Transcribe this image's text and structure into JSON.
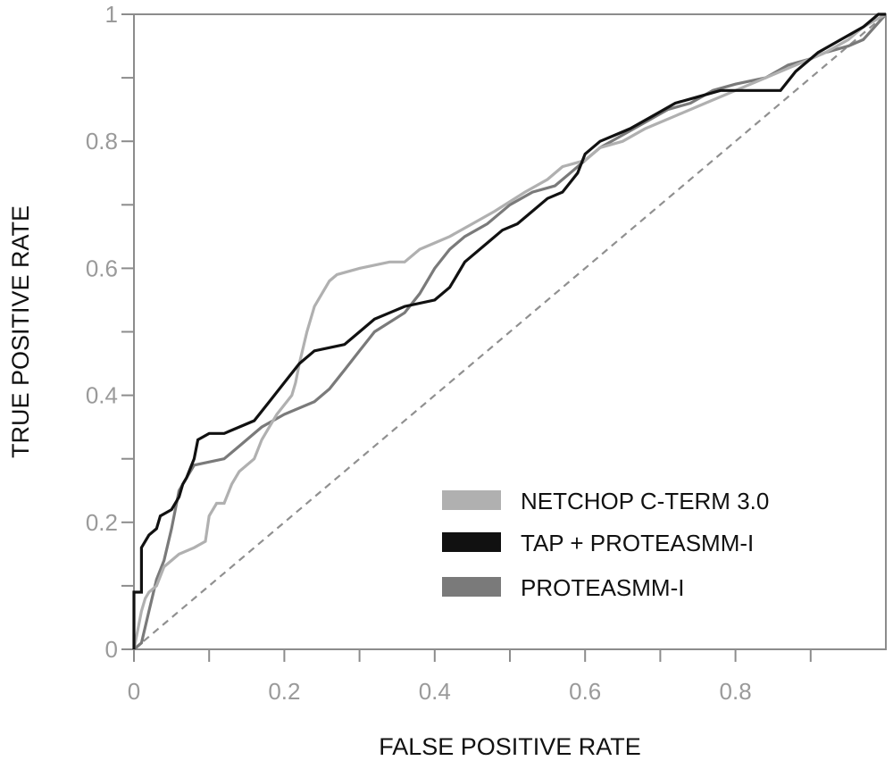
{
  "chart_data": {
    "type": "line",
    "title": "",
    "xlabel": "FALSE POSITIVE RATE",
    "ylabel": "TRUE POSITIVE RATE",
    "xlim": [
      0,
      1
    ],
    "ylim": [
      0,
      1
    ],
    "x_ticks": [
      {
        "value": 0,
        "label": "0"
      },
      {
        "value": 0.2,
        "label": "0.2"
      },
      {
        "value": 0.4,
        "label": "0.4"
      },
      {
        "value": 0.6,
        "label": "0.6"
      },
      {
        "value": 0.8,
        "label": "0.8"
      }
    ],
    "x_minor_ticks": [
      0.1,
      0.3,
      0.5,
      0.7,
      0.9
    ],
    "y_ticks": [
      {
        "value": 0,
        "label": "0"
      },
      {
        "value": 0.2,
        "label": "0.2"
      },
      {
        "value": 0.4,
        "label": "0.4"
      },
      {
        "value": 0.6,
        "label": "0.6"
      },
      {
        "value": 0.8,
        "label": "0.8"
      },
      {
        "value": 1,
        "label": "1"
      }
    ],
    "y_minor_ticks": [
      0.1,
      0.3,
      0.5,
      0.7,
      0.9
    ],
    "grid": false,
    "legend_position": "lower-right",
    "reference_line": {
      "points": [
        [
          0,
          0
        ],
        [
          1,
          1
        ]
      ],
      "style": "dashed",
      "color": "#909090"
    },
    "series": [
      {
        "name": "NETCHOP C-TERM 3.0",
        "color": "#b0b0b0",
        "points": [
          [
            0,
            0
          ],
          [
            0.005,
            0.03
          ],
          [
            0.01,
            0.06
          ],
          [
            0.015,
            0.08
          ],
          [
            0.02,
            0.09
          ],
          [
            0.03,
            0.1
          ],
          [
            0.04,
            0.13
          ],
          [
            0.05,
            0.14
          ],
          [
            0.06,
            0.15
          ],
          [
            0.08,
            0.16
          ],
          [
            0.095,
            0.17
          ],
          [
            0.1,
            0.21
          ],
          [
            0.11,
            0.23
          ],
          [
            0.12,
            0.23
          ],
          [
            0.13,
            0.26
          ],
          [
            0.14,
            0.28
          ],
          [
            0.16,
            0.3
          ],
          [
            0.17,
            0.33
          ],
          [
            0.18,
            0.35
          ],
          [
            0.19,
            0.37
          ],
          [
            0.21,
            0.4
          ],
          [
            0.215,
            0.42
          ],
          [
            0.22,
            0.45
          ],
          [
            0.23,
            0.5
          ],
          [
            0.24,
            0.54
          ],
          [
            0.25,
            0.56
          ],
          [
            0.26,
            0.58
          ],
          [
            0.27,
            0.59
          ],
          [
            0.3,
            0.6
          ],
          [
            0.34,
            0.61
          ],
          [
            0.36,
            0.61
          ],
          [
            0.38,
            0.63
          ],
          [
            0.4,
            0.64
          ],
          [
            0.42,
            0.65
          ],
          [
            0.45,
            0.67
          ],
          [
            0.48,
            0.69
          ],
          [
            0.52,
            0.72
          ],
          [
            0.55,
            0.74
          ],
          [
            0.57,
            0.76
          ],
          [
            0.6,
            0.77
          ],
          [
            0.62,
            0.79
          ],
          [
            0.65,
            0.8
          ],
          [
            0.68,
            0.82
          ],
          [
            0.72,
            0.84
          ],
          [
            0.76,
            0.86
          ],
          [
            0.8,
            0.88
          ],
          [
            0.84,
            0.9
          ],
          [
            0.88,
            0.92
          ],
          [
            0.92,
            0.94
          ],
          [
            0.95,
            0.96
          ],
          [
            0.97,
            0.98
          ],
          [
            1,
            1
          ]
        ]
      },
      {
        "name": "TAP + PROTEASMM-I",
        "color": "#111111",
        "points": [
          [
            0,
            0
          ],
          [
            0,
            0.09
          ],
          [
            0.01,
            0.09
          ],
          [
            0.01,
            0.16
          ],
          [
            0.02,
            0.18
          ],
          [
            0.03,
            0.19
          ],
          [
            0.035,
            0.21
          ],
          [
            0.05,
            0.22
          ],
          [
            0.06,
            0.24
          ],
          [
            0.065,
            0.26
          ],
          [
            0.07,
            0.27
          ],
          [
            0.08,
            0.3
          ],
          [
            0.085,
            0.33
          ],
          [
            0.1,
            0.34
          ],
          [
            0.12,
            0.34
          ],
          [
            0.14,
            0.35
          ],
          [
            0.16,
            0.36
          ],
          [
            0.18,
            0.39
          ],
          [
            0.2,
            0.42
          ],
          [
            0.22,
            0.45
          ],
          [
            0.24,
            0.47
          ],
          [
            0.28,
            0.48
          ],
          [
            0.3,
            0.5
          ],
          [
            0.32,
            0.52
          ],
          [
            0.34,
            0.53
          ],
          [
            0.36,
            0.54
          ],
          [
            0.4,
            0.55
          ],
          [
            0.42,
            0.57
          ],
          [
            0.43,
            0.59
          ],
          [
            0.44,
            0.61
          ],
          [
            0.45,
            0.62
          ],
          [
            0.47,
            0.64
          ],
          [
            0.49,
            0.66
          ],
          [
            0.51,
            0.67
          ],
          [
            0.53,
            0.69
          ],
          [
            0.55,
            0.71
          ],
          [
            0.57,
            0.72
          ],
          [
            0.59,
            0.75
          ],
          [
            0.6,
            0.78
          ],
          [
            0.62,
            0.8
          ],
          [
            0.64,
            0.81
          ],
          [
            0.66,
            0.82
          ],
          [
            0.69,
            0.84
          ],
          [
            0.72,
            0.86
          ],
          [
            0.75,
            0.87
          ],
          [
            0.78,
            0.88
          ],
          [
            0.84,
            0.88
          ],
          [
            0.86,
            0.88
          ],
          [
            0.88,
            0.91
          ],
          [
            0.91,
            0.94
          ],
          [
            0.94,
            0.96
          ],
          [
            0.97,
            0.98
          ],
          [
            0.99,
            1
          ],
          [
            1,
            1
          ]
        ]
      },
      {
        "name": "PROTEASMM-I",
        "color": "#7a7a7a",
        "points": [
          [
            0,
            0
          ],
          [
            0.01,
            0.01
          ],
          [
            0.02,
            0.06
          ],
          [
            0.03,
            0.11
          ],
          [
            0.04,
            0.14
          ],
          [
            0.05,
            0.19
          ],
          [
            0.06,
            0.25
          ],
          [
            0.07,
            0.27
          ],
          [
            0.08,
            0.29
          ],
          [
            0.12,
            0.3
          ],
          [
            0.14,
            0.32
          ],
          [
            0.17,
            0.35
          ],
          [
            0.2,
            0.37
          ],
          [
            0.24,
            0.39
          ],
          [
            0.26,
            0.41
          ],
          [
            0.28,
            0.44
          ],
          [
            0.3,
            0.47
          ],
          [
            0.32,
            0.5
          ],
          [
            0.36,
            0.53
          ],
          [
            0.38,
            0.56
          ],
          [
            0.4,
            0.6
          ],
          [
            0.42,
            0.63
          ],
          [
            0.44,
            0.65
          ],
          [
            0.47,
            0.67
          ],
          [
            0.5,
            0.7
          ],
          [
            0.53,
            0.72
          ],
          [
            0.56,
            0.73
          ],
          [
            0.58,
            0.75
          ],
          [
            0.6,
            0.77
          ],
          [
            0.62,
            0.79
          ],
          [
            0.65,
            0.81
          ],
          [
            0.68,
            0.83
          ],
          [
            0.71,
            0.85
          ],
          [
            0.74,
            0.86
          ],
          [
            0.77,
            0.88
          ],
          [
            0.8,
            0.89
          ],
          [
            0.84,
            0.9
          ],
          [
            0.87,
            0.92
          ],
          [
            0.9,
            0.93
          ],
          [
            0.92,
            0.94
          ],
          [
            0.95,
            0.95
          ],
          [
            0.97,
            0.96
          ],
          [
            1,
            1
          ]
        ]
      }
    ]
  }
}
